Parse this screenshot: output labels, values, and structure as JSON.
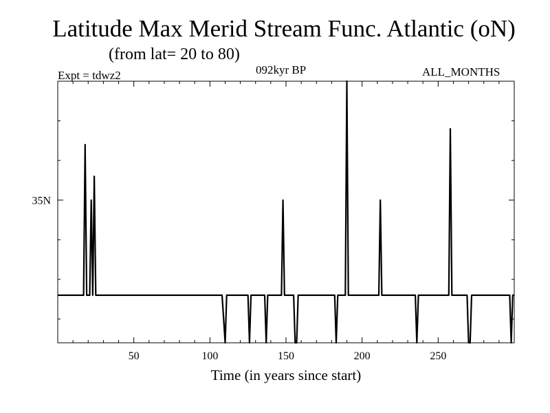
{
  "chart_data": {
    "type": "line",
    "title": "Latitude Max Merid Stream Func. Atlantic (oN)",
    "subtitle": "(from lat= 20 to 80)",
    "experiment_label": "Expt = tdwz2",
    "period_label": "092kyr BP",
    "months_label": "ALL_MONTHS",
    "xlabel": "Time (in years since start)",
    "ylabel": "",
    "xlim": [
      0,
      300
    ],
    "ylim": [
      17,
      50
    ],
    "x_ticks": [
      50,
      100,
      150,
      200,
      250
    ],
    "x_tick_labels": [
      "50",
      "100",
      "150",
      "200",
      "250"
    ],
    "y_ticks": [
      35
    ],
    "y_tick_labels": [
      "35N"
    ],
    "grid": false,
    "series": [
      {
        "color": "#000000",
        "x": [
          0,
          17,
          18,
          19,
          20,
          21,
          22,
          23,
          24,
          25,
          26,
          27,
          28,
          108,
          109,
          110,
          111,
          125,
          126,
          127,
          136,
          137,
          138,
          147,
          148,
          149,
          150,
          155,
          156,
          157,
          158,
          182,
          183,
          184,
          185,
          189,
          190,
          191,
          192,
          211,
          212,
          213,
          214,
          235,
          236,
          237,
          238,
          257,
          258,
          259,
          260,
          269,
          270,
          271,
          272,
          297,
          298,
          299,
          300
        ],
        "y": [
          23,
          23,
          42,
          23,
          23,
          23,
          35,
          23,
          38,
          23,
          23,
          23,
          23,
          23,
          20,
          17,
          23,
          23,
          17,
          23,
          23,
          17,
          23,
          23,
          35,
          23,
          23,
          23,
          17,
          17,
          23,
          23,
          17,
          23,
          23,
          23,
          50,
          23,
          23,
          23,
          35,
          23,
          23,
          23,
          17,
          23,
          23,
          23,
          44,
          23,
          23,
          23,
          17,
          17,
          23,
          23,
          17,
          23,
          23
        ]
      }
    ]
  }
}
